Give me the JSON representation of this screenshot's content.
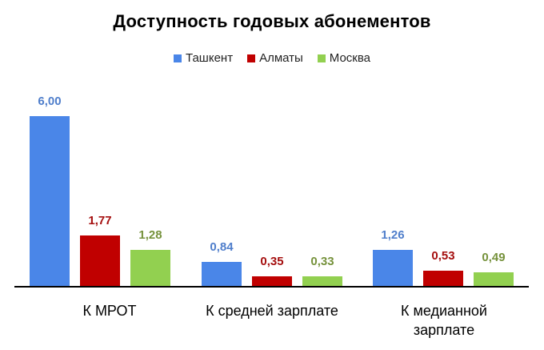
{
  "title": "Доступность годовых абонементов",
  "legend": [
    {
      "label": "Ташкент",
      "color": "#4a86e8"
    },
    {
      "label": "Алматы",
      "color": "#c00000"
    },
    {
      "label": "Москва",
      "color": "#92d050"
    }
  ],
  "value_label_colors": [
    "#4f7ecb",
    "#a50f0f",
    "#76923c"
  ],
  "categories": [
    "К МРОТ",
    "К средней зарплате",
    "К медианной зарплате"
  ],
  "category_lines": [
    [
      "К МРОТ"
    ],
    [
      "К средней зарплате"
    ],
    [
      "К медианной",
      "зарплате"
    ]
  ],
  "value_labels": [
    [
      "6,00",
      "1,77",
      "1,28"
    ],
    [
      "0,84",
      "0,35",
      "0,33"
    ],
    [
      "1,26",
      "0,53",
      "0,49"
    ]
  ],
  "chart_data": {
    "type": "bar",
    "title": "Доступность годовых абонементов",
    "categories": [
      "К МРОТ",
      "К средней зарплате",
      "К медианной зарплате"
    ],
    "series": [
      {
        "name": "Ташкент",
        "values": [
          6.0,
          0.84,
          1.26
        ],
        "color": "#4a86e8"
      },
      {
        "name": "Алматы",
        "values": [
          1.77,
          0.35,
          0.53
        ],
        "color": "#c00000"
      },
      {
        "name": "Москва",
        "values": [
          1.28,
          0.33,
          0.49
        ],
        "color": "#92d050"
      }
    ],
    "xlabel": "",
    "ylabel": "",
    "ylim": [
      0,
      6
    ],
    "grid": false,
    "legend_position": "top",
    "data_labels": true
  }
}
